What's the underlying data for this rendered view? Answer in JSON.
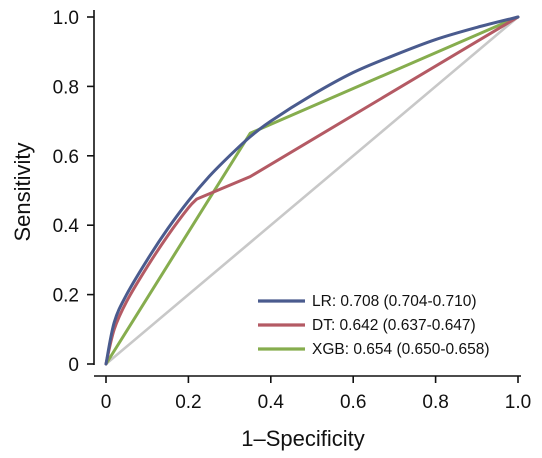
{
  "chart_data": {
    "type": "line",
    "title": "",
    "xlabel": "1–Specificity",
    "ylabel": "Sensitivity",
    "xlim": [
      0,
      1
    ],
    "ylim": [
      0,
      1
    ],
    "xticks": [
      "0",
      "0.2",
      "0.4",
      "0.6",
      "0.8",
      "1.0"
    ],
    "yticks": [
      "0",
      "0.2",
      "0.4",
      "0.6",
      "0.8",
      "1.0"
    ],
    "grid": false,
    "legend_position": "bottom-right",
    "diagonal": {
      "x": [
        0,
        1
      ],
      "y": [
        0,
        1
      ],
      "color": "#c8c8c8"
    },
    "series": [
      {
        "name": "LR: 0.708 (0.704-0.710)",
        "color": "#4a5b8e",
        "x": [
          0,
          0.02,
          0.05,
          0.1,
          0.15,
          0.2,
          0.25,
          0.3,
          0.35,
          0.4,
          0.5,
          0.6,
          0.7,
          0.8,
          0.9,
          1.0
        ],
        "y": [
          0,
          0.12,
          0.2,
          0.3,
          0.39,
          0.47,
          0.54,
          0.6,
          0.655,
          0.7,
          0.775,
          0.84,
          0.89,
          0.935,
          0.97,
          1.0
        ]
      },
      {
        "name": "DT: 0.642 (0.637-0.647)",
        "color": "#b45a64",
        "x": [
          0,
          0.02,
          0.05,
          0.1,
          0.15,
          0.2,
          0.22,
          0.35,
          1.0
        ],
        "y": [
          0,
          0.1,
          0.18,
          0.28,
          0.37,
          0.45,
          0.475,
          0.54,
          1.0
        ]
      },
      {
        "name": "XGB: 0.654 (0.650-0.658)",
        "color": "#86ad4e",
        "x": [
          0,
          0.35,
          1.0
        ],
        "y": [
          0,
          0.665,
          1.0
        ]
      }
    ]
  }
}
